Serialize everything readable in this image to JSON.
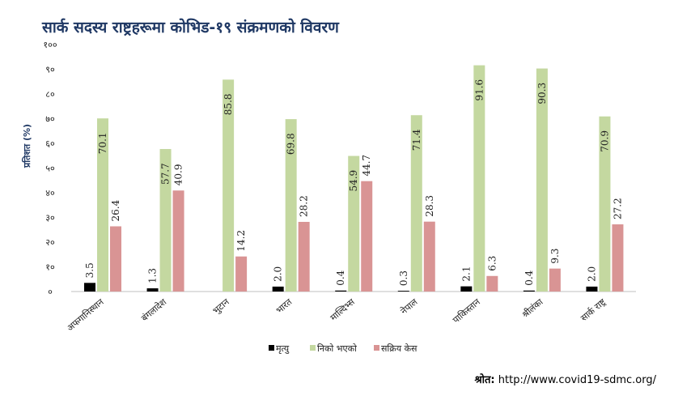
{
  "title": "सार्क सदस्य राष्ट्रहरूमा कोभिड-१९ संक्रमणको विवरण",
  "source": {
    "label": "श्रोत:",
    "url": "http://www.covid19-sdmc.org/"
  },
  "colors": {
    "series": [
      "#000000",
      "#c4d8a0",
      "#d99494"
    ],
    "axis": "#bfbfbf"
  },
  "chart_data": {
    "type": "bar",
    "ylabel": "प्रतिशत (%)",
    "xlabel": "",
    "ylim": [
      0,
      100
    ],
    "yticks": [
      0,
      10,
      20,
      30,
      40,
      50,
      60,
      70,
      80,
      90,
      100
    ],
    "ytick_labels": [
      "०",
      "१०",
      "२०",
      "३०",
      "४०",
      "५०",
      "६०",
      "७०",
      "८०",
      "९०",
      "१००"
    ],
    "categories": [
      "अफगानिस्थान",
      "बंगलादेश",
      "भुटान",
      "भारत",
      "माल्दिभ्स",
      "नेपाल",
      "पाकिस्तान",
      "श्रीलंका",
      "सार्क राष्ट्र"
    ],
    "series": [
      {
        "name": "मृत्यु",
        "values": [
          3.5,
          1.3,
          0,
          2.0,
          0.4,
          0.3,
          2.1,
          0.4,
          2.0
        ],
        "labels": [
          "3.5",
          "1.3",
          "",
          "2.0",
          "0.4",
          "0.3",
          "2.1",
          "0.4",
          "2.0"
        ]
      },
      {
        "name": "निको भएको",
        "values": [
          70.1,
          57.7,
          85.8,
          69.8,
          54.9,
          71.4,
          91.6,
          90.3,
          70.9
        ],
        "labels": [
          "70.1",
          "57.7",
          "85.8",
          "69.8",
          "54.9",
          "71.4",
          "91.6",
          "90.3",
          "70.9"
        ]
      },
      {
        "name": "सक्रिय केस",
        "values": [
          26.4,
          40.9,
          14.2,
          28.2,
          44.7,
          28.3,
          6.3,
          9.3,
          27.2
        ],
        "labels": [
          "26.4",
          "40.9",
          "14.2",
          "28.2",
          "44.7",
          "28.3",
          "6.3",
          "9.3",
          "27.2"
        ]
      }
    ],
    "legend_position": "bottom",
    "grid": false
  }
}
